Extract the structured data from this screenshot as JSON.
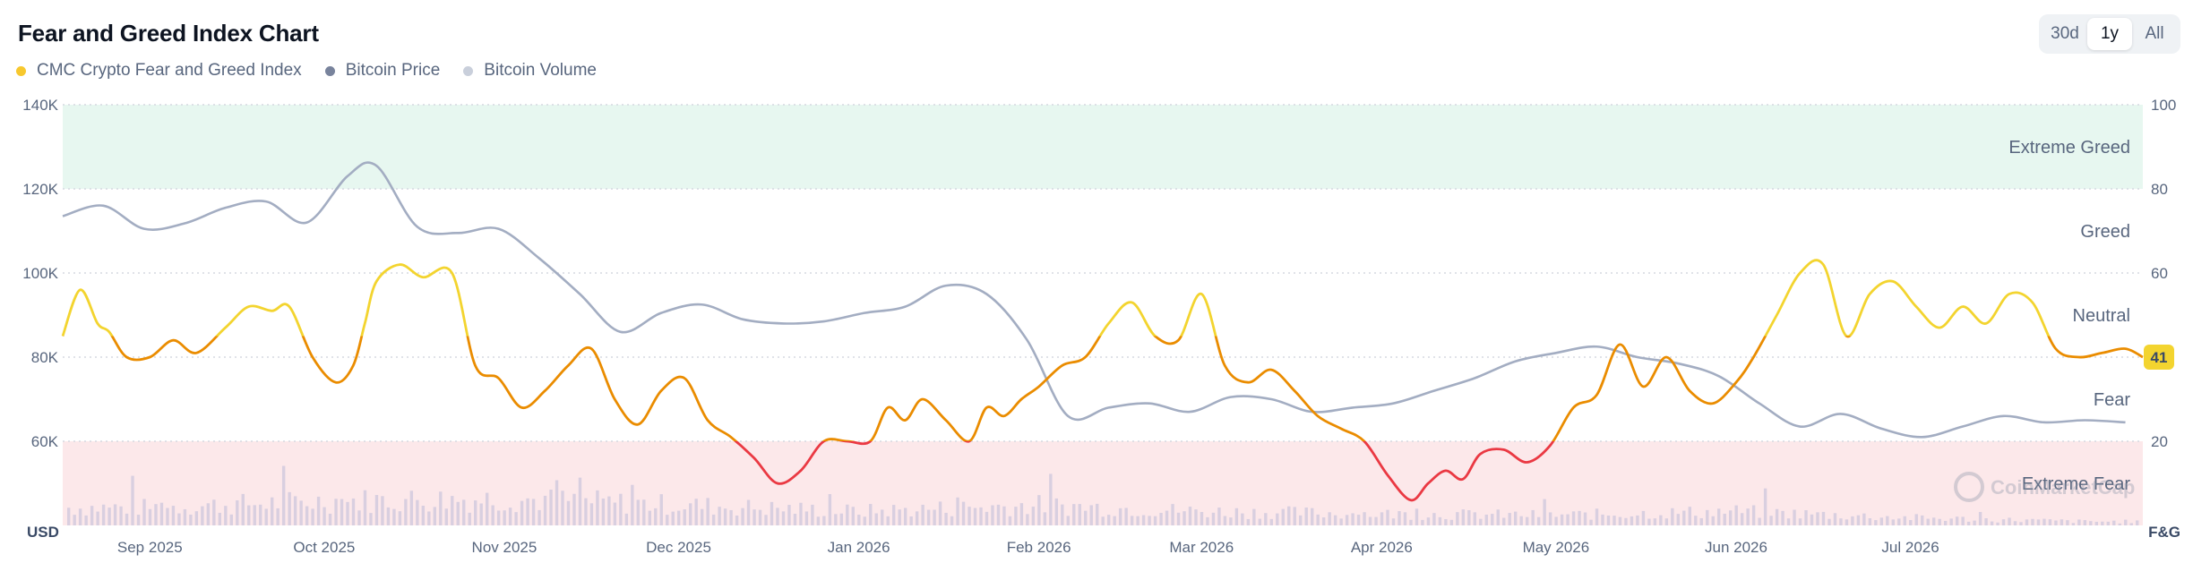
{
  "title": "Fear and Greed Index Chart",
  "range_toggle": {
    "options": [
      "30d",
      "1y",
      "All"
    ],
    "selected": "1y"
  },
  "legend": [
    {
      "label": "CMC Crypto Fear and Greed Index",
      "color": "#f7c82e"
    },
    {
      "label": "Bitcoin Price",
      "color": "#78839c"
    },
    {
      "label": "Bitcoin Volume",
      "color": "#c9cfdb"
    }
  ],
  "current_value_badge": "41",
  "watermark": "CoinMarketCap",
  "chart_data": {
    "type": "line",
    "x_labels": [
      "Sep 2025",
      "Oct 2025",
      "Nov 2025",
      "Dec 2025",
      "Jan 2026",
      "Feb 2026",
      "Mar 2026",
      "Apr 2026",
      "May 2026",
      "Jun 2026",
      "Jul 2026"
    ],
    "x_range": [
      "2025-08-17",
      "2026-08-10"
    ],
    "left_axis": {
      "unit_label": "USD",
      "ticks": [
        "140K",
        "120K",
        "100K",
        "80K",
        "60K"
      ],
      "range": [
        40000,
        140000
      ]
    },
    "right_axis": {
      "unit_label": "F&G",
      "ticks": [
        "100",
        "80",
        "60",
        "40",
        "20"
      ],
      "range": [
        0,
        100
      ]
    },
    "zones": [
      {
        "label": "Extreme Greed",
        "range": [
          80,
          100
        ],
        "color": "#e7f7f0"
      },
      {
        "label": "Greed",
        "range": [
          60,
          80
        ]
      },
      {
        "label": "Neutral",
        "range": [
          40,
          60
        ]
      },
      {
        "label": "Fear",
        "range": [
          20,
          40
        ]
      },
      {
        "label": "Extreme Fear",
        "range": [
          0,
          20
        ],
        "color": "#fce8ea"
      }
    ],
    "fg_color_scale": [
      {
        "max": 20,
        "color": "#ea3943"
      },
      {
        "max": 45,
        "color": "#ea8c00"
      },
      {
        "max": 75,
        "color": "#f3d42f"
      },
      {
        "max": 100,
        "color": "#93d900"
      }
    ],
    "series": [
      {
        "name": "CMC Crypto Fear and Greed Index",
        "axis": "right",
        "x": [
          "2025-08-17",
          "2025-08-20",
          "2025-08-23",
          "2025-08-25",
          "2025-08-28",
          "2025-09-01",
          "2025-09-05",
          "2025-09-09",
          "2025-09-14",
          "2025-09-18",
          "2025-09-22",
          "2025-09-25",
          "2025-09-29",
          "2025-10-03",
          "2025-10-06",
          "2025-10-08",
          "2025-10-10",
          "2025-10-14",
          "2025-10-18",
          "2025-10-23",
          "2025-10-27",
          "2025-10-31",
          "2025-11-04",
          "2025-11-08",
          "2025-11-12",
          "2025-11-16",
          "2025-11-20",
          "2025-11-24",
          "2025-11-28",
          "2025-12-02",
          "2025-12-06",
          "2025-12-10",
          "2025-12-14",
          "2025-12-18",
          "2025-12-22",
          "2025-12-26",
          "2025-12-30",
          "2026-01-03",
          "2026-01-06",
          "2026-01-09",
          "2026-01-12",
          "2026-01-16",
          "2026-01-20",
          "2026-01-23",
          "2026-01-26",
          "2026-01-29",
          "2026-02-01",
          "2026-02-05",
          "2026-02-09",
          "2026-02-13",
          "2026-02-17",
          "2026-02-21",
          "2026-02-25",
          "2026-03-01",
          "2026-03-05",
          "2026-03-09",
          "2026-03-13",
          "2026-03-17",
          "2026-03-21",
          "2026-03-25",
          "2026-03-29",
          "2026-04-02",
          "2026-04-06",
          "2026-04-09",
          "2026-04-12",
          "2026-04-15",
          "2026-04-18",
          "2026-04-22",
          "2026-04-26",
          "2026-04-30",
          "2026-05-04",
          "2026-05-08",
          "2026-05-12",
          "2026-05-16",
          "2026-05-20",
          "2026-05-24",
          "2026-05-28",
          "2026-06-01",
          "2026-06-04",
          "2026-06-08",
          "2026-06-12",
          "2026-06-16",
          "2026-06-20",
          "2026-06-24",
          "2026-06-28",
          "2026-07-02",
          "2026-07-06",
          "2026-07-10",
          "2026-07-14",
          "2026-07-18",
          "2026-07-22",
          "2026-07-26",
          "2026-07-30",
          "2026-08-03",
          "2026-08-07",
          "2026-08-10"
        ],
        "values": [
          45,
          56,
          48,
          46,
          40,
          40,
          44,
          41,
          47,
          52,
          51,
          52,
          40,
          34,
          38,
          48,
          58,
          62,
          59,
          60,
          38,
          35,
          28,
          32,
          38,
          42,
          30,
          24,
          32,
          35,
          25,
          21,
          16,
          10,
          13,
          20,
          20,
          20,
          28,
          25,
          30,
          25,
          20,
          28,
          26,
          30,
          33,
          38,
          40,
          48,
          53,
          45,
          44,
          55,
          38,
          34,
          37,
          32,
          26,
          23,
          20,
          12,
          6,
          10,
          13,
          11,
          17,
          18,
          15,
          19,
          28,
          31,
          43,
          33,
          40,
          32,
          29,
          34,
          40,
          50,
          60,
          62,
          45,
          55,
          58,
          52,
          47,
          52,
          48,
          55,
          53,
          42,
          40,
          41,
          42,
          40
        ]
      },
      {
        "name": "Bitcoin Price",
        "axis": "left",
        "x": [
          "2025-08-17",
          "2025-08-24",
          "2025-08-31",
          "2025-09-07",
          "2025-09-14",
          "2025-09-21",
          "2025-09-28",
          "2025-10-05",
          "2025-10-10",
          "2025-10-17",
          "2025-10-24",
          "2025-10-31",
          "2025-11-07",
          "2025-11-14",
          "2025-11-21",
          "2025-11-28",
          "2025-12-05",
          "2025-12-12",
          "2025-12-19",
          "2025-12-26",
          "2026-01-02",
          "2026-01-09",
          "2026-01-16",
          "2026-01-23",
          "2026-01-30",
          "2026-02-06",
          "2026-02-13",
          "2026-02-20",
          "2026-02-27",
          "2026-03-06",
          "2026-03-13",
          "2026-03-20",
          "2026-03-27",
          "2026-04-03",
          "2026-04-10",
          "2026-04-17",
          "2026-04-24",
          "2026-05-01",
          "2026-05-08",
          "2026-05-15",
          "2026-05-22",
          "2026-05-29",
          "2026-06-05",
          "2026-06-12",
          "2026-06-19",
          "2026-06-26",
          "2026-07-03",
          "2026-07-10",
          "2026-07-17",
          "2026-07-24",
          "2026-07-31",
          "2026-08-07"
        ],
        "values": [
          113500,
          116000,
          110500,
          111800,
          115500,
          117000,
          112000,
          123000,
          125500,
          111000,
          109500,
          110500,
          103500,
          95000,
          86000,
          90500,
          92500,
          89000,
          88000,
          88500,
          90500,
          92000,
          97000,
          95000,
          84000,
          66000,
          68000,
          69000,
          67000,
          70500,
          70000,
          67000,
          68000,
          69000,
          72000,
          75000,
          79000,
          81000,
          82500,
          80000,
          78500,
          75500,
          69000,
          63500,
          66500,
          63000,
          61000,
          63500,
          66000,
          64500,
          65000,
          64500
        ]
      },
      {
        "name": "Bitcoin Volume",
        "axis": "left",
        "x": [
          "2025-09-01",
          "2025-10-01",
          "2025-11-01",
          "2025-12-01",
          "2026-01-01",
          "2026-02-01",
          "2026-03-01",
          "2026-04-01",
          "2026-05-01",
          "2026-06-01",
          "2026-07-01",
          "2026-08-01"
        ],
        "values": [
          14000,
          19000,
          21000,
          16000,
          11000,
          16000,
          11000,
          9000,
          8000,
          11000,
          6000,
          3000
        ]
      }
    ]
  }
}
